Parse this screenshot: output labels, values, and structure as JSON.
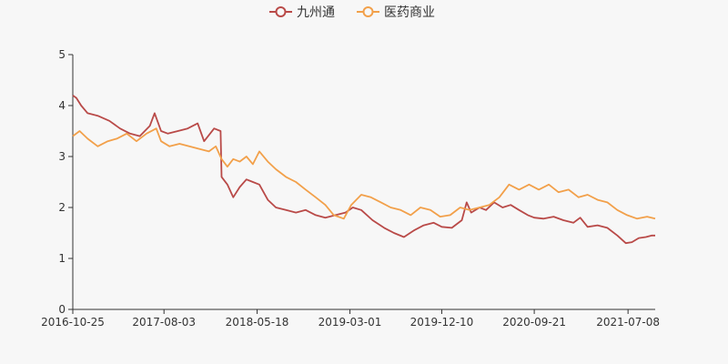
{
  "chart_data": {
    "type": "line",
    "title": "",
    "xlabel": "",
    "ylabel": "",
    "ylim": [
      0,
      5
    ],
    "y_ticks": [
      0,
      1,
      2,
      3,
      4,
      5
    ],
    "x_range": [
      "2016-10-25",
      "2021-09-30"
    ],
    "x_tick_labels": [
      "2016-10-25",
      "2017-08-03",
      "2018-05-18",
      "2019-03-01",
      "2019-12-10",
      "2020-09-21",
      "2021-07-08"
    ],
    "grid": false,
    "legend_position": "top-center",
    "series": [
      {
        "name": "九州通",
        "color": "#b94a48",
        "points": [
          [
            "2016-10-25",
            4.2
          ],
          [
            "2016-11-05",
            4.15
          ],
          [
            "2016-11-20",
            4.0
          ],
          [
            "2016-12-10",
            3.85
          ],
          [
            "2017-01-10",
            3.8
          ],
          [
            "2017-02-15",
            3.7
          ],
          [
            "2017-03-20",
            3.55
          ],
          [
            "2017-04-20",
            3.45
          ],
          [
            "2017-05-20",
            3.4
          ],
          [
            "2017-06-20",
            3.6
          ],
          [
            "2017-07-05",
            3.85
          ],
          [
            "2017-07-25",
            3.5
          ],
          [
            "2017-08-15",
            3.45
          ],
          [
            "2017-09-15",
            3.5
          ],
          [
            "2017-10-15",
            3.55
          ],
          [
            "2017-11-15",
            3.65
          ],
          [
            "2017-12-05",
            3.3
          ],
          [
            "2018-01-05",
            3.55
          ],
          [
            "2018-01-25",
            3.5
          ],
          [
            "2018-01-28",
            2.6
          ],
          [
            "2018-02-15",
            2.45
          ],
          [
            "2018-03-05",
            2.2
          ],
          [
            "2018-03-25",
            2.4
          ],
          [
            "2018-04-15",
            2.55
          ],
          [
            "2018-05-05",
            2.5
          ],
          [
            "2018-05-25",
            2.45
          ],
          [
            "2018-06-20",
            2.15
          ],
          [
            "2018-07-15",
            2.0
          ],
          [
            "2018-08-15",
            1.95
          ],
          [
            "2018-09-15",
            1.9
          ],
          [
            "2018-10-15",
            1.95
          ],
          [
            "2018-11-15",
            1.85
          ],
          [
            "2018-12-15",
            1.8
          ],
          [
            "2019-01-15",
            1.85
          ],
          [
            "2019-02-15",
            1.9
          ],
          [
            "2019-03-10",
            2.0
          ],
          [
            "2019-04-05",
            1.95
          ],
          [
            "2019-05-10",
            1.75
          ],
          [
            "2019-06-15",
            1.6
          ],
          [
            "2019-07-15",
            1.5
          ],
          [
            "2019-08-15",
            1.42
          ],
          [
            "2019-09-15",
            1.55
          ],
          [
            "2019-10-15",
            1.65
          ],
          [
            "2019-11-15",
            1.7
          ],
          [
            "2019-12-10",
            1.62
          ],
          [
            "2020-01-10",
            1.6
          ],
          [
            "2020-02-10",
            1.75
          ],
          [
            "2020-02-25",
            2.1
          ],
          [
            "2020-03-10",
            1.9
          ],
          [
            "2020-04-05",
            2.0
          ],
          [
            "2020-04-25",
            1.95
          ],
          [
            "2020-05-20",
            2.1
          ],
          [
            "2020-06-15",
            2.0
          ],
          [
            "2020-07-10",
            2.05
          ],
          [
            "2020-08-05",
            1.95
          ],
          [
            "2020-09-01",
            1.85
          ],
          [
            "2020-09-21",
            1.8
          ],
          [
            "2020-10-20",
            1.78
          ],
          [
            "2020-11-20",
            1.82
          ],
          [
            "2020-12-20",
            1.75
          ],
          [
            "2021-01-20",
            1.7
          ],
          [
            "2021-02-10",
            1.8
          ],
          [
            "2021-03-05",
            1.62
          ],
          [
            "2021-04-05",
            1.65
          ],
          [
            "2021-05-05",
            1.6
          ],
          [
            "2021-06-05",
            1.45
          ],
          [
            "2021-07-01",
            1.3
          ],
          [
            "2021-07-20",
            1.32
          ],
          [
            "2021-08-10",
            1.4
          ],
          [
            "2021-09-01",
            1.42
          ],
          [
            "2021-09-20",
            1.45
          ],
          [
            "2021-09-30",
            1.45
          ]
        ]
      },
      {
        "name": "医药商业",
        "color": "#f2a04a",
        "points": [
          [
            "2016-10-25",
            3.4
          ],
          [
            "2016-11-15",
            3.5
          ],
          [
            "2016-12-10",
            3.35
          ],
          [
            "2017-01-10",
            3.2
          ],
          [
            "2017-02-10",
            3.3
          ],
          [
            "2017-03-10",
            3.35
          ],
          [
            "2017-04-10",
            3.45
          ],
          [
            "2017-05-10",
            3.3
          ],
          [
            "2017-06-10",
            3.45
          ],
          [
            "2017-07-10",
            3.55
          ],
          [
            "2017-07-25",
            3.3
          ],
          [
            "2017-08-20",
            3.2
          ],
          [
            "2017-09-20",
            3.25
          ],
          [
            "2017-10-20",
            3.2
          ],
          [
            "2017-11-20",
            3.15
          ],
          [
            "2017-12-20",
            3.1
          ],
          [
            "2018-01-10",
            3.2
          ],
          [
            "2018-01-28",
            2.95
          ],
          [
            "2018-02-15",
            2.8
          ],
          [
            "2018-03-05",
            2.95
          ],
          [
            "2018-03-25",
            2.9
          ],
          [
            "2018-04-15",
            3.0
          ],
          [
            "2018-05-05",
            2.85
          ],
          [
            "2018-05-25",
            3.1
          ],
          [
            "2018-06-20",
            2.9
          ],
          [
            "2018-07-15",
            2.75
          ],
          [
            "2018-08-15",
            2.6
          ],
          [
            "2018-09-15",
            2.5
          ],
          [
            "2018-10-15",
            2.35
          ],
          [
            "2018-11-15",
            2.2
          ],
          [
            "2018-12-15",
            2.05
          ],
          [
            "2019-01-10",
            1.85
          ],
          [
            "2019-02-10",
            1.78
          ],
          [
            "2019-03-05",
            2.05
          ],
          [
            "2019-04-05",
            2.25
          ],
          [
            "2019-05-05",
            2.2
          ],
          [
            "2019-06-05",
            2.1
          ],
          [
            "2019-07-05",
            2.0
          ],
          [
            "2019-08-05",
            1.95
          ],
          [
            "2019-09-05",
            1.85
          ],
          [
            "2019-10-05",
            2.0
          ],
          [
            "2019-11-05",
            1.95
          ],
          [
            "2019-12-05",
            1.82
          ],
          [
            "2020-01-05",
            1.85
          ],
          [
            "2020-02-05",
            2.0
          ],
          [
            "2020-03-05",
            1.95
          ],
          [
            "2020-04-05",
            2.0
          ],
          [
            "2020-05-05",
            2.05
          ],
          [
            "2020-06-05",
            2.2
          ],
          [
            "2020-07-05",
            2.45
          ],
          [
            "2020-08-05",
            2.35
          ],
          [
            "2020-09-05",
            2.45
          ],
          [
            "2020-10-05",
            2.35
          ],
          [
            "2020-11-05",
            2.45
          ],
          [
            "2020-12-05",
            2.3
          ],
          [
            "2021-01-05",
            2.35
          ],
          [
            "2021-02-05",
            2.2
          ],
          [
            "2021-03-05",
            2.25
          ],
          [
            "2021-04-05",
            2.15
          ],
          [
            "2021-05-05",
            2.1
          ],
          [
            "2021-06-05",
            1.95
          ],
          [
            "2021-07-05",
            1.85
          ],
          [
            "2021-08-05",
            1.78
          ],
          [
            "2021-09-05",
            1.82
          ],
          [
            "2021-09-30",
            1.78
          ]
        ]
      }
    ]
  }
}
